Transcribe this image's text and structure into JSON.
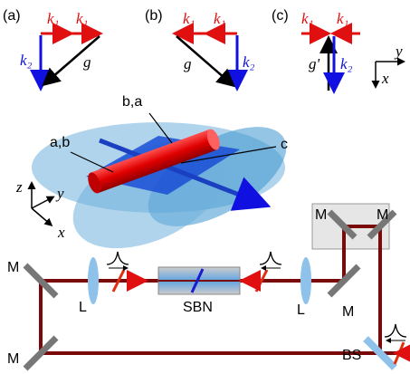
{
  "panels": [
    {
      "label": "(a)",
      "k1_first": "k₁",
      "k1_second": "k₁",
      "k2": "k₂",
      "g": "g"
    },
    {
      "label": "(b)",
      "k1_first": "k₁",
      "k1_second": "k₁",
      "k2": "k₂",
      "g": "g"
    },
    {
      "label": "(c)",
      "k1_first": "k₁",
      "k1_second": "k₁",
      "k2": "k₂",
      "g": "g'"
    }
  ],
  "panel_axes": {
    "y": "y",
    "x": "x"
  },
  "crystal": {
    "label_top": "b,a",
    "label_left": "a,b",
    "label_right": "c"
  },
  "axes_3d": {
    "z": "z",
    "y": "y",
    "x": "x"
  },
  "setup": {
    "mirrors": [
      "M",
      "M",
      "M",
      "M",
      "M"
    ],
    "lenses": [
      "L",
      "L"
    ],
    "crystal": "SBN",
    "splitter": "BS"
  }
}
